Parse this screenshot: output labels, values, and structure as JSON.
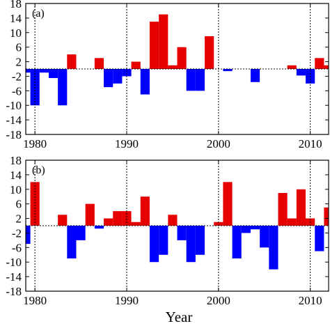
{
  "figure": {
    "xlabel": "Year"
  },
  "chart_data": [
    {
      "type": "bar",
      "panel_label": "(a)",
      "xlabel": "",
      "ylabel": "",
      "xlim": [
        1979,
        2012
      ],
      "ylim": [
        -18,
        18
      ],
      "x_ticks": [
        1980,
        1990,
        2000,
        2010
      ],
      "y_ticks": [
        18,
        14,
        10,
        6,
        2,
        -2,
        -6,
        -10,
        -14,
        -18
      ],
      "y_tick_labels": [
        "18",
        "14",
        "10",
        "6",
        "2",
        "-2",
        "-6",
        "-10",
        "-14",
        "-18"
      ],
      "grid": "dotted lines at y = 0 and x = 1980, 1990, 2000, 2010",
      "years": [
        1979,
        1980,
        1981,
        1982,
        1983,
        1984,
        1985,
        1986,
        1987,
        1988,
        1989,
        1990,
        1991,
        1992,
        1993,
        1994,
        1995,
        1996,
        1997,
        1998,
        1999,
        2000,
        2001,
        2002,
        2003,
        2004,
        2005,
        2006,
        2007,
        2008,
        2009,
        2010,
        2011,
        2012
      ],
      "values": [
        -1,
        -10,
        -1,
        -2.5,
        -10,
        4,
        0,
        0,
        3,
        -5,
        -4,
        -2,
        2,
        -7,
        13,
        15,
        1,
        6,
        -6,
        -6,
        9,
        0,
        -0.6,
        0,
        0,
        -3.6,
        0,
        0,
        0,
        1,
        -1.8,
        -4,
        3,
        1
      ],
      "colors": {
        "positive": "#e60000",
        "negative": "#0000ff"
      }
    },
    {
      "type": "bar",
      "panel_label": "(b)",
      "xlabel": "Year",
      "ylabel": "",
      "xlim": [
        1979,
        2012
      ],
      "ylim": [
        -18,
        18
      ],
      "x_ticks": [
        1980,
        1990,
        2000,
        2010
      ],
      "y_ticks": [
        18,
        14,
        10,
        6,
        2,
        -2,
        -6,
        -10,
        -14,
        -18
      ],
      "y_tick_labels": [
        "18",
        "14",
        "10",
        "6",
        "2",
        "-2",
        "-6",
        "-10",
        "-14",
        "-18"
      ],
      "grid": "dotted lines at y = 0 and x = 1980, 1990, 2000, 2010",
      "years": [
        1979,
        1980,
        1981,
        1982,
        1983,
        1984,
        1985,
        1986,
        1987,
        1988,
        1989,
        1990,
        1991,
        1992,
        1993,
        1994,
        1995,
        1996,
        1997,
        1998,
        1999,
        2000,
        2001,
        2002,
        2003,
        2004,
        2005,
        2006,
        2007,
        2008,
        2009,
        2010,
        2011,
        2012
      ],
      "values": [
        -5,
        12,
        0,
        0,
        3,
        -9,
        -4,
        6,
        -0.8,
        2,
        4,
        4,
        1,
        8,
        -10,
        -8,
        3,
        -4,
        -10,
        -8,
        0,
        1,
        12,
        -9,
        -2,
        -1,
        -6,
        -12,
        9,
        2,
        10,
        2,
        -7,
        5
      ],
      "colors": {
        "positive": "#e60000",
        "negative": "#0000ff"
      }
    }
  ]
}
